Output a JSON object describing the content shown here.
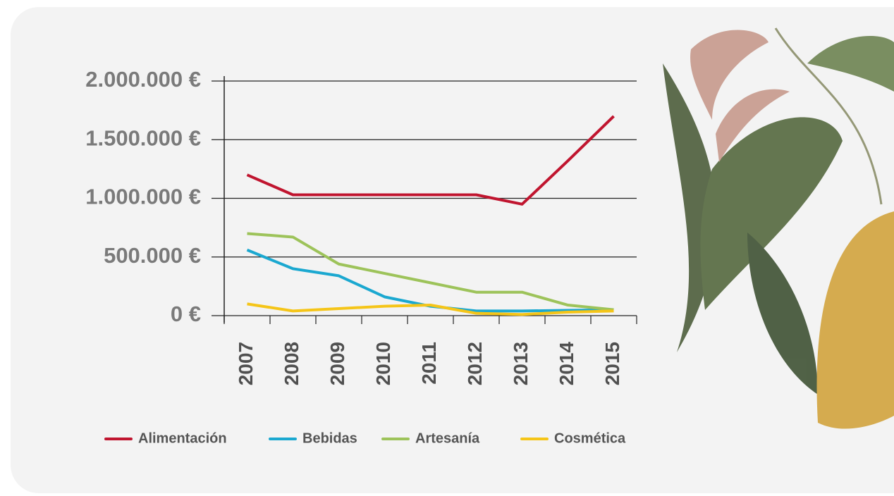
{
  "chart_data": {
    "type": "line",
    "categories": [
      "2007",
      "2008",
      "2009",
      "2010",
      "2011",
      "2012",
      "2013",
      "2014",
      "2015"
    ],
    "series": [
      {
        "name": "Alimentación",
        "color": "#c0152f",
        "values": [
          1200000,
          1030000,
          1030000,
          1030000,
          1030000,
          1030000,
          950000,
          1320000,
          1700000
        ]
      },
      {
        "name": "Bebidas",
        "color": "#1ba8d0",
        "values": [
          560000,
          400000,
          340000,
          160000,
          80000,
          40000,
          40000,
          45000,
          50000
        ]
      },
      {
        "name": "Artesanía",
        "color": "#9dc35a",
        "values": [
          700000,
          670000,
          440000,
          360000,
          280000,
          200000,
          200000,
          90000,
          50000
        ]
      },
      {
        "name": "Cosmética",
        "color": "#f5c518",
        "values": [
          100000,
          40000,
          60000,
          80000,
          90000,
          20000,
          10000,
          30000,
          40000
        ]
      }
    ],
    "ylim": [
      0,
      2000000
    ],
    "yticks": [
      {
        "value": 0,
        "label": "0 €"
      },
      {
        "value": 500000,
        "label": "500.000 €"
      },
      {
        "value": 1000000,
        "label": "1.000.000 €"
      },
      {
        "value": 1500000,
        "label": "1.500.000 €"
      },
      {
        "value": 2000000,
        "label": "2.000.000 €"
      }
    ],
    "grid": true
  }
}
